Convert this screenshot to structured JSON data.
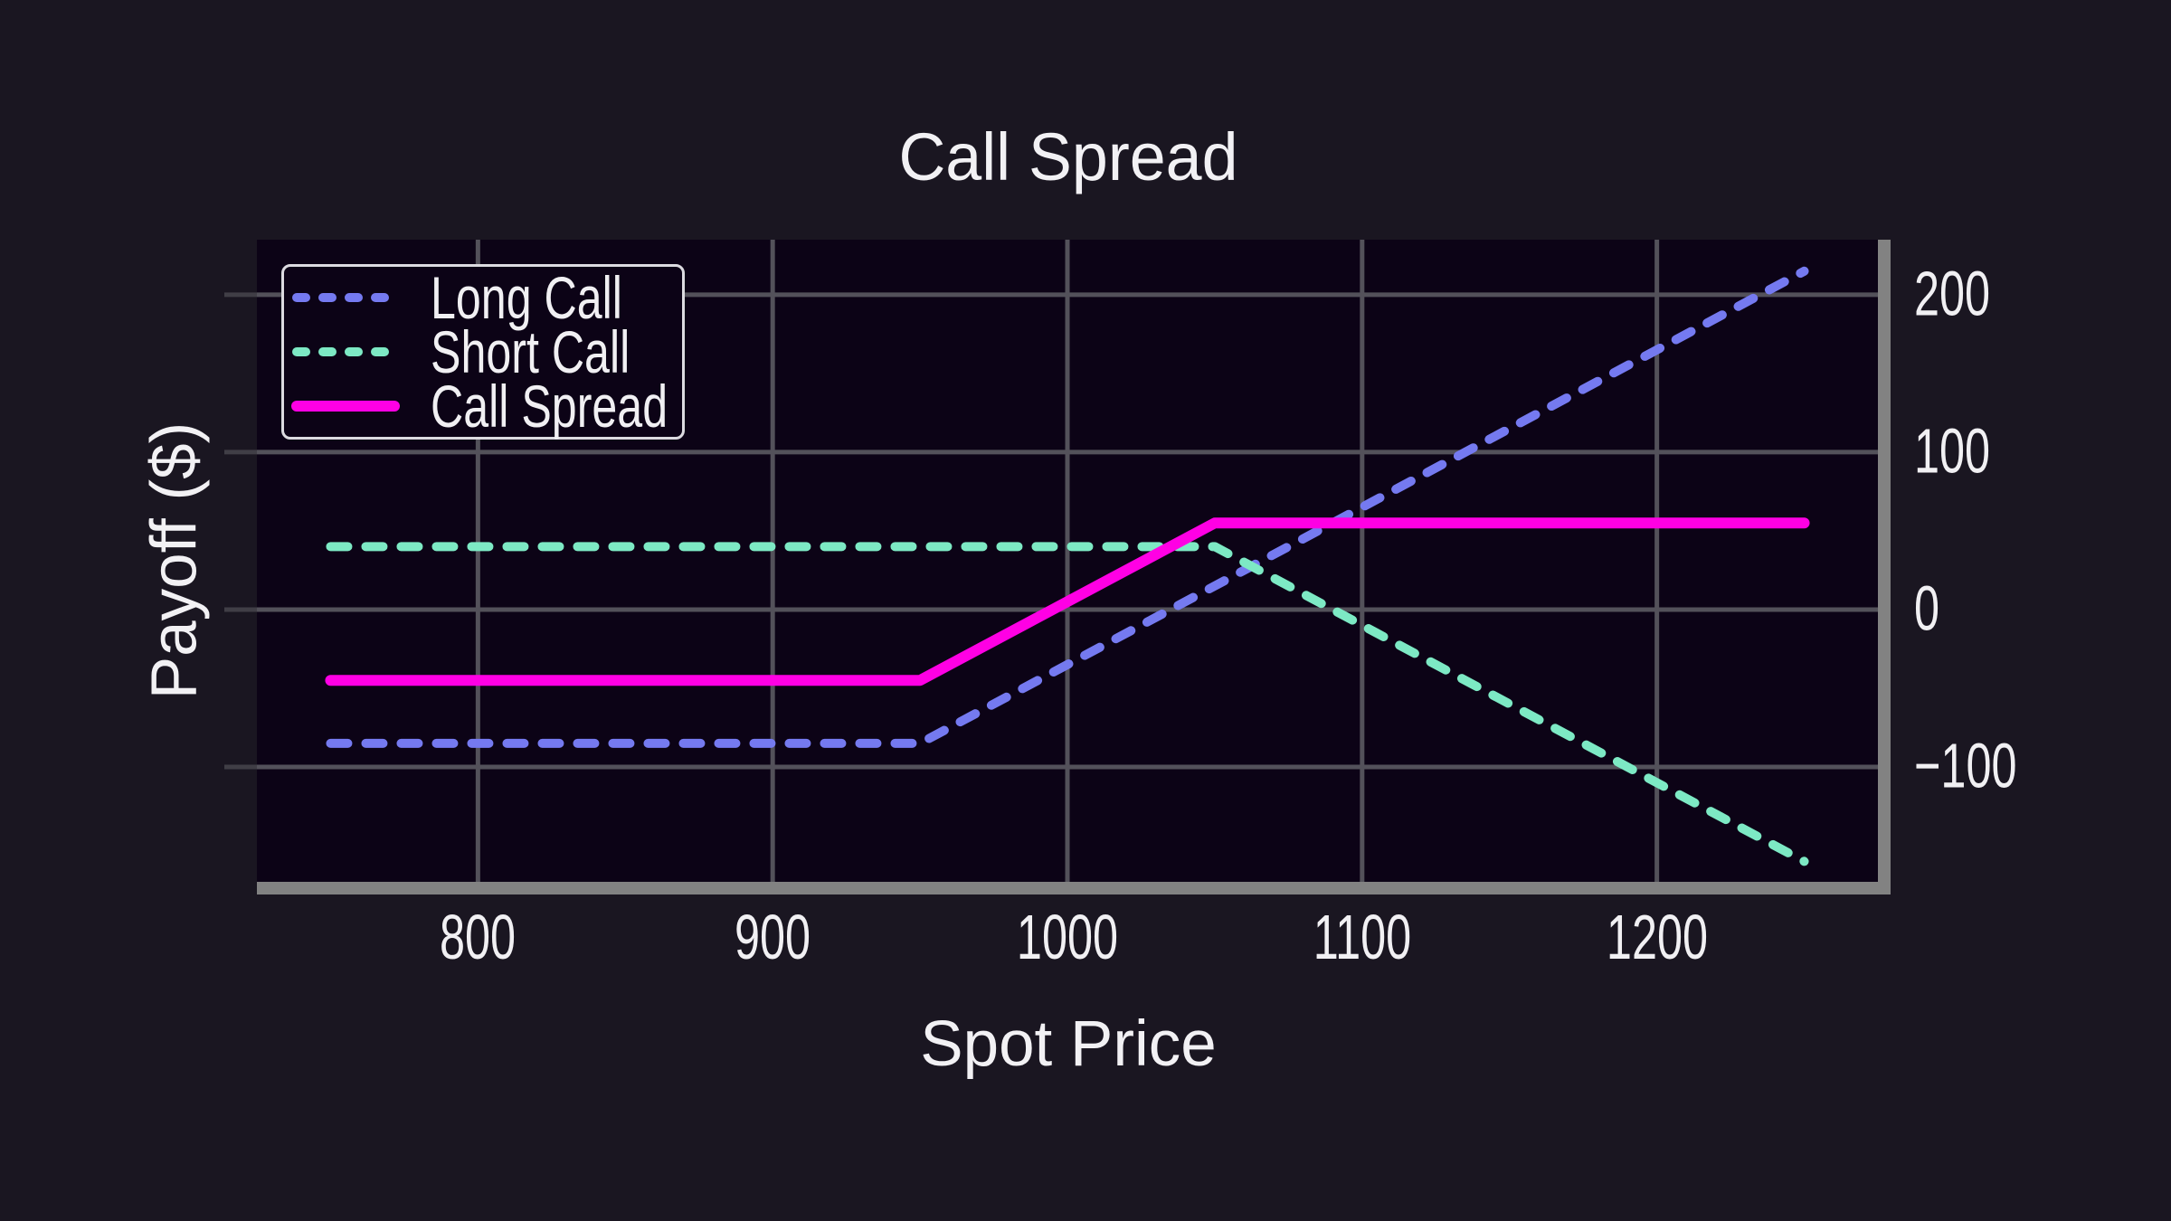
{
  "figure": {
    "background": "#1a1621",
    "plot_background": "#0c0316",
    "grid_color": "#53515a",
    "spine_color": "#828282",
    "tick_mark_color": "#403e46",
    "text_color": "#f1f0f3",
    "legend_border_color": "#dcdbe0"
  },
  "chart_data": {
    "type": "line",
    "title": "Call Spread",
    "xlabel": "Spot Price",
    "ylabel": "Payoff ($)",
    "xlim": [
      725,
      1275
    ],
    "ylim": [
      -173,
      235
    ],
    "x_ticks": [
      800,
      900,
      1000,
      1100,
      1200
    ],
    "y_ticks": [
      200,
      100,
      0,
      -100
    ],
    "grid": true,
    "legend_position": "upper left",
    "series": [
      {
        "name": "Long Call",
        "color": "#757af0",
        "style": "dashed",
        "width": 10,
        "points": [
          [
            750,
            -85
          ],
          [
            950,
            -85
          ],
          [
            1250,
            215
          ]
        ]
      },
      {
        "name": "Short Call",
        "color": "#7de9c4",
        "style": "dashed",
        "width": 10,
        "points": [
          [
            750,
            40
          ],
          [
            1050,
            40
          ],
          [
            1250,
            -160
          ]
        ]
      },
      {
        "name": "Call Spread",
        "color": "#ff00e4",
        "style": "solid",
        "width": 12,
        "points": [
          [
            750,
            -45
          ],
          [
            950,
            -45
          ],
          [
            1050,
            55
          ],
          [
            1250,
            55
          ]
        ]
      }
    ]
  }
}
